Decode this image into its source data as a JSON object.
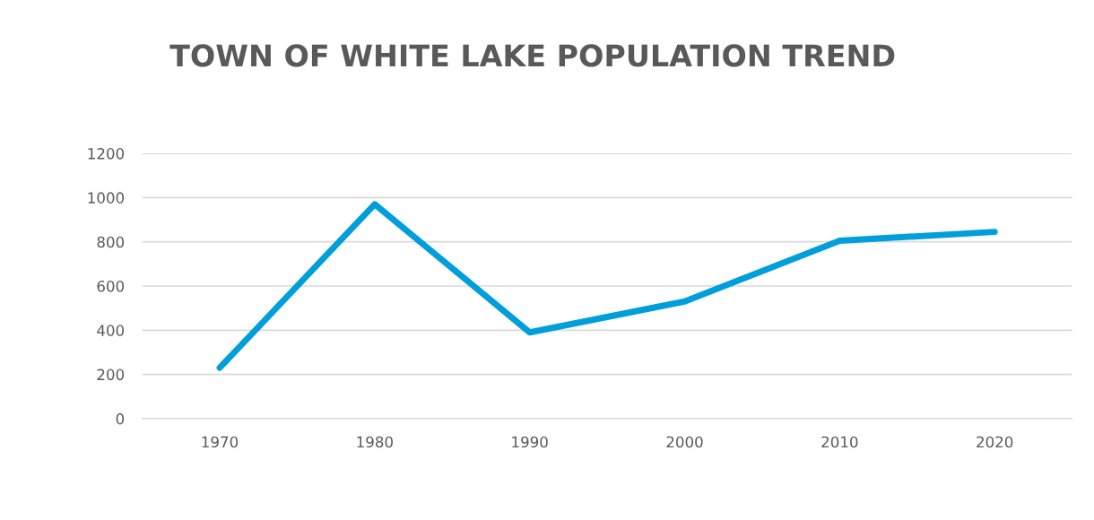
{
  "chart_data": {
    "type": "line",
    "title": "TOWN OF WHITE LAKE POPULATION TREND",
    "categories": [
      "1970",
      "1980",
      "1990",
      "2000",
      "2010",
      "2020"
    ],
    "series": [
      {
        "color": "#009fdc",
        "values": [
          230,
          970,
          390,
          530,
          805,
          845
        ]
      }
    ],
    "ylim": [
      0,
      1200
    ],
    "yticks": [
      0,
      200,
      400,
      600,
      800,
      1000,
      1200
    ],
    "grid": "y",
    "marker": "none",
    "line_style": "solid"
  }
}
